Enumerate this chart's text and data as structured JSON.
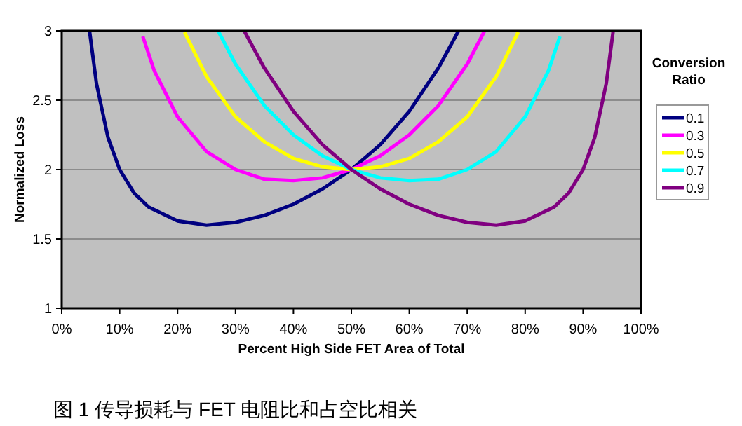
{
  "chart_data": {
    "type": "line",
    "xlabel": "Percent High Side FET Area of Total",
    "ylabel": "Normalized Loss",
    "legend_title": "Conversion Ratio",
    "legend": "right",
    "grid": "y",
    "xlim": [
      0,
      1
    ],
    "ylim": [
      1,
      3
    ],
    "xticks": [
      {
        "value": 0,
        "label": "0%"
      },
      {
        "value": 0.1,
        "label": "10%"
      },
      {
        "value": 0.2,
        "label": "20%"
      },
      {
        "value": 0.3,
        "label": "30%"
      },
      {
        "value": 0.4,
        "label": "40%"
      },
      {
        "value": 0.5,
        "label": "50%"
      },
      {
        "value": 0.6,
        "label": "60%"
      },
      {
        "value": 0.7,
        "label": "70%"
      },
      {
        "value": 0.8,
        "label": "80%"
      },
      {
        "value": 0.9,
        "label": "90%"
      },
      {
        "value": 1,
        "label": "100%"
      }
    ],
    "yticks": [
      1,
      1.5,
      2,
      2.5,
      3
    ],
    "series": [
      {
        "name": "0.1",
        "color": "#000080",
        "x": [
          0.048,
          0.06,
          0.08,
          0.1,
          0.125,
          0.15,
          0.2,
          0.25,
          0.3,
          0.35,
          0.4,
          0.45,
          0.5,
          0.55,
          0.6,
          0.65,
          0.685
        ],
        "values": [
          3.0,
          2.62,
          2.23,
          2.0,
          1.83,
          1.73,
          1.63,
          1.6,
          1.62,
          1.67,
          1.75,
          1.86,
          2.0,
          2.18,
          2.42,
          2.73,
          3.0
        ]
      },
      {
        "name": "0.3",
        "color": "#ff00ff",
        "x": [
          0.14,
          0.16,
          0.2,
          0.25,
          0.3,
          0.35,
          0.4,
          0.45,
          0.5,
          0.55,
          0.6,
          0.65,
          0.7,
          0.73
        ],
        "values": [
          2.96,
          2.71,
          2.38,
          2.13,
          2.0,
          1.93,
          1.92,
          1.94,
          2.0,
          2.1,
          2.25,
          2.46,
          2.76,
          3.0
        ]
      },
      {
        "name": "0.5",
        "color": "#ffff00",
        "x": [
          0.212,
          0.25,
          0.3,
          0.35,
          0.4,
          0.45,
          0.5,
          0.55,
          0.6,
          0.65,
          0.7,
          0.75,
          0.788
        ],
        "values": [
          2.99,
          2.67,
          2.38,
          2.2,
          2.08,
          2.02,
          2.0,
          2.02,
          2.08,
          2.2,
          2.38,
          2.67,
          2.99
        ]
      },
      {
        "name": "0.7",
        "color": "#00ffff",
        "x": [
          0.27,
          0.3,
          0.35,
          0.4,
          0.45,
          0.5,
          0.55,
          0.6,
          0.65,
          0.7,
          0.75,
          0.8,
          0.84,
          0.86
        ],
        "values": [
          3.0,
          2.76,
          2.46,
          2.25,
          2.1,
          2.0,
          1.94,
          1.92,
          1.93,
          2.0,
          2.13,
          2.38,
          2.71,
          2.96
        ]
      },
      {
        "name": "0.9",
        "color": "#800080",
        "x": [
          0.315,
          0.35,
          0.4,
          0.45,
          0.5,
          0.55,
          0.6,
          0.65,
          0.7,
          0.75,
          0.8,
          0.85,
          0.875,
          0.9,
          0.92,
          0.94,
          0.952
        ],
        "values": [
          3.0,
          2.73,
          2.42,
          2.18,
          2.0,
          1.86,
          1.75,
          1.67,
          1.62,
          1.6,
          1.63,
          1.73,
          1.83,
          2.0,
          2.23,
          2.62,
          3.0
        ]
      }
    ],
    "annotations": [
      "图 1 传导损耗与 FET 电阻比和占空比相关"
    ]
  }
}
